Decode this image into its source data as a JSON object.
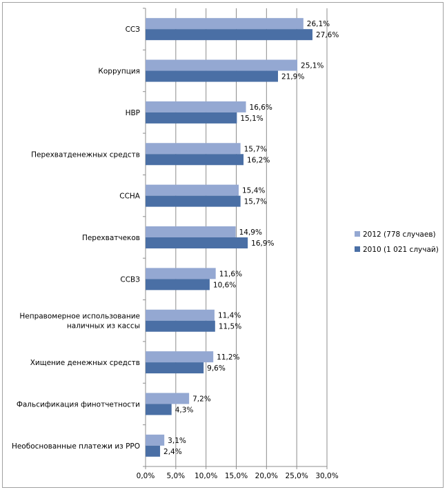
{
  "chart_data": {
    "type": "bar",
    "orientation": "horizontal",
    "categories": [
      "ССЗ",
      "Коррупция",
      "НВР",
      "Перехватденежных средств",
      "ССНА",
      "Перехватчеков",
      "ССВЗ",
      "Неправомерное использование наличных из кассы",
      "Хищение денежных средств",
      "Фальсификация финотчетности",
      "Необоснованные платежи из РРО"
    ],
    "category_lines": [
      [
        "ССЗ"
      ],
      [
        "Коррупция"
      ],
      [
        "НВР"
      ],
      [
        "Перехватденежных средств"
      ],
      [
        "ССНА"
      ],
      [
        "Перехватчеков"
      ],
      [
        "ССВЗ"
      ],
      [
        "Неправомерное использование",
        "наличных из кассы"
      ],
      [
        "Хищение денежных средств"
      ],
      [
        "Фальсификация финотчетности"
      ],
      [
        "Необоснованные платежи из РРО"
      ]
    ],
    "series": [
      {
        "name": "2012 (778 случаев)",
        "color": "#94a8d2",
        "values": [
          26.1,
          25.1,
          16.6,
          15.7,
          15.4,
          14.9,
          11.6,
          11.4,
          11.2,
          7.2,
          3.1
        ],
        "labels": [
          "26,1%",
          "25,1%",
          "16,6%",
          "15,7%",
          "15,4%",
          "14,9%",
          "11,6%",
          "11,4%",
          "11,2%",
          "7,2%",
          "3,1%"
        ]
      },
      {
        "name": "2010 (1 021 случай)",
        "color": "#4a6fa5",
        "values": [
          27.6,
          21.9,
          15.1,
          16.2,
          15.7,
          16.9,
          10.6,
          11.5,
          9.6,
          4.3,
          2.4
        ],
        "labels": [
          "27,6%",
          "21,9%",
          "15,1%",
          "16,2%",
          "15,7%",
          "16,9%",
          "10,6%",
          "11,5%",
          "9,6%",
          "4,3%",
          "2,4%"
        ]
      }
    ],
    "xlim": [
      0,
      30
    ],
    "x_ticks": [
      0,
      5,
      10,
      15,
      20,
      25,
      30
    ],
    "x_tick_labels": [
      "0,0%",
      "5,0%",
      "10,0%",
      "15,0%",
      "20,0%",
      "25,0%",
      "30,0%"
    ],
    "grid": "vertical",
    "legend_position": "right",
    "title": "",
    "xlabel": "",
    "ylabel": ""
  }
}
